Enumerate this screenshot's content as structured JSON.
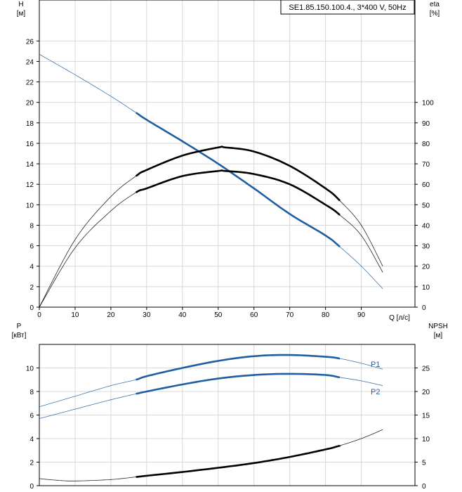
{
  "chart_data": [
    {
      "type": "line",
      "title": "SE1.85.150.100.4., 3*400 V, 50Hz",
      "ylabel_left": "H",
      "ylabel_left_unit": "[м]",
      "ylabel_right": "eta",
      "ylabel_right_unit": "[%]",
      "xlabel": "Q [л/с]",
      "xlim": [
        0,
        105
      ],
      "ylim_left": [
        0,
        30
      ],
      "ylim_right": [
        0,
        150
      ],
      "xticks": [
        "0",
        "10",
        "20",
        "30",
        "40",
        "50",
        "60",
        "70",
        "80",
        "90"
      ],
      "yticks_left": [
        "0",
        "2",
        "4",
        "6",
        "8",
        "10",
        "12",
        "14",
        "16",
        "18",
        "20",
        "22",
        "24",
        "26"
      ],
      "yticks_right": [
        "0",
        "10",
        "20",
        "30",
        "40",
        "50",
        "60",
        "70",
        "80",
        "90",
        "100"
      ],
      "grid": true,
      "series": [
        {
          "quantity": "H",
          "axis": "left",
          "color": "#1f5fa0",
          "operating_range": [
            27,
            84
          ],
          "x": [
            0,
            10,
            20,
            27,
            30,
            40,
            50,
            60,
            70,
            80,
            84,
            90,
            96
          ],
          "values": [
            24.7,
            22.7,
            20.6,
            19.0,
            18.3,
            16.2,
            14.0,
            11.6,
            9.1,
            7.0,
            5.9,
            4.0,
            1.8
          ]
        },
        {
          "quantity": "eta",
          "axis": "right",
          "color": "#000000",
          "operating_range": [
            27,
            84
          ],
          "x": [
            0,
            10,
            20,
            27,
            30,
            40,
            50,
            52,
            60,
            70,
            80,
            84,
            90,
            96
          ],
          "values": [
            0,
            33,
            54,
            64,
            67,
            74,
            78,
            78,
            76,
            69,
            58,
            52,
            40,
            20
          ]
        },
        {
          "quantity": "eta",
          "axis": "right",
          "color": "#000000",
          "operating_range": [
            27,
            84
          ],
          "x": [
            0,
            10,
            20,
            27,
            30,
            40,
            50,
            52,
            60,
            70,
            80,
            84,
            90,
            96
          ],
          "values": [
            0,
            29,
            47,
            56,
            58,
            64,
            66.5,
            66.5,
            65,
            60,
            50,
            45,
            35,
            17
          ]
        }
      ]
    },
    {
      "type": "line",
      "ylabel_left": "P",
      "ylabel_left_unit": "[кВт]",
      "ylabel_right": "NPSH",
      "ylabel_right_unit": "[м]",
      "xlim": [
        0,
        105
      ],
      "ylim_left": [
        0,
        12
      ],
      "ylim_right": [
        0,
        30
      ],
      "yticks_left": [
        "0",
        "2",
        "4",
        "6",
        "8",
        "10"
      ],
      "yticks_right": [
        "0",
        "5",
        "10",
        "15",
        "20",
        "25"
      ],
      "grid": true,
      "series": [
        {
          "name": "P1",
          "axis": "left",
          "color": "#1f5fa0",
          "operating_range": [
            27,
            84
          ],
          "x": [
            0,
            10,
            20,
            27,
            30,
            40,
            50,
            60,
            70,
            80,
            84,
            90,
            96
          ],
          "values": [
            6.7,
            7.6,
            8.5,
            9.0,
            9.3,
            10.0,
            10.6,
            11.0,
            11.1,
            10.95,
            10.8,
            10.4,
            9.9
          ]
        },
        {
          "name": "P2",
          "axis": "left",
          "color": "#1f5fa0",
          "operating_range": [
            27,
            84
          ],
          "x": [
            0,
            10,
            20,
            27,
            30,
            40,
            50,
            60,
            70,
            80,
            84,
            90,
            96
          ],
          "values": [
            5.7,
            6.5,
            7.3,
            7.8,
            8.0,
            8.6,
            9.1,
            9.4,
            9.5,
            9.4,
            9.2,
            8.9,
            8.5
          ]
        },
        {
          "quantity": "NPSH",
          "axis": "right",
          "color": "#000000",
          "operating_range": [
            27,
            84
          ],
          "x": [
            0,
            5,
            10,
            20,
            27,
            30,
            40,
            50,
            60,
            70,
            80,
            84,
            90,
            96
          ],
          "values": [
            1.5,
            1.15,
            1.0,
            1.3,
            1.85,
            2.1,
            2.9,
            3.8,
            4.8,
            6.1,
            7.7,
            8.5,
            10.0,
            11.9
          ]
        }
      ]
    }
  ]
}
